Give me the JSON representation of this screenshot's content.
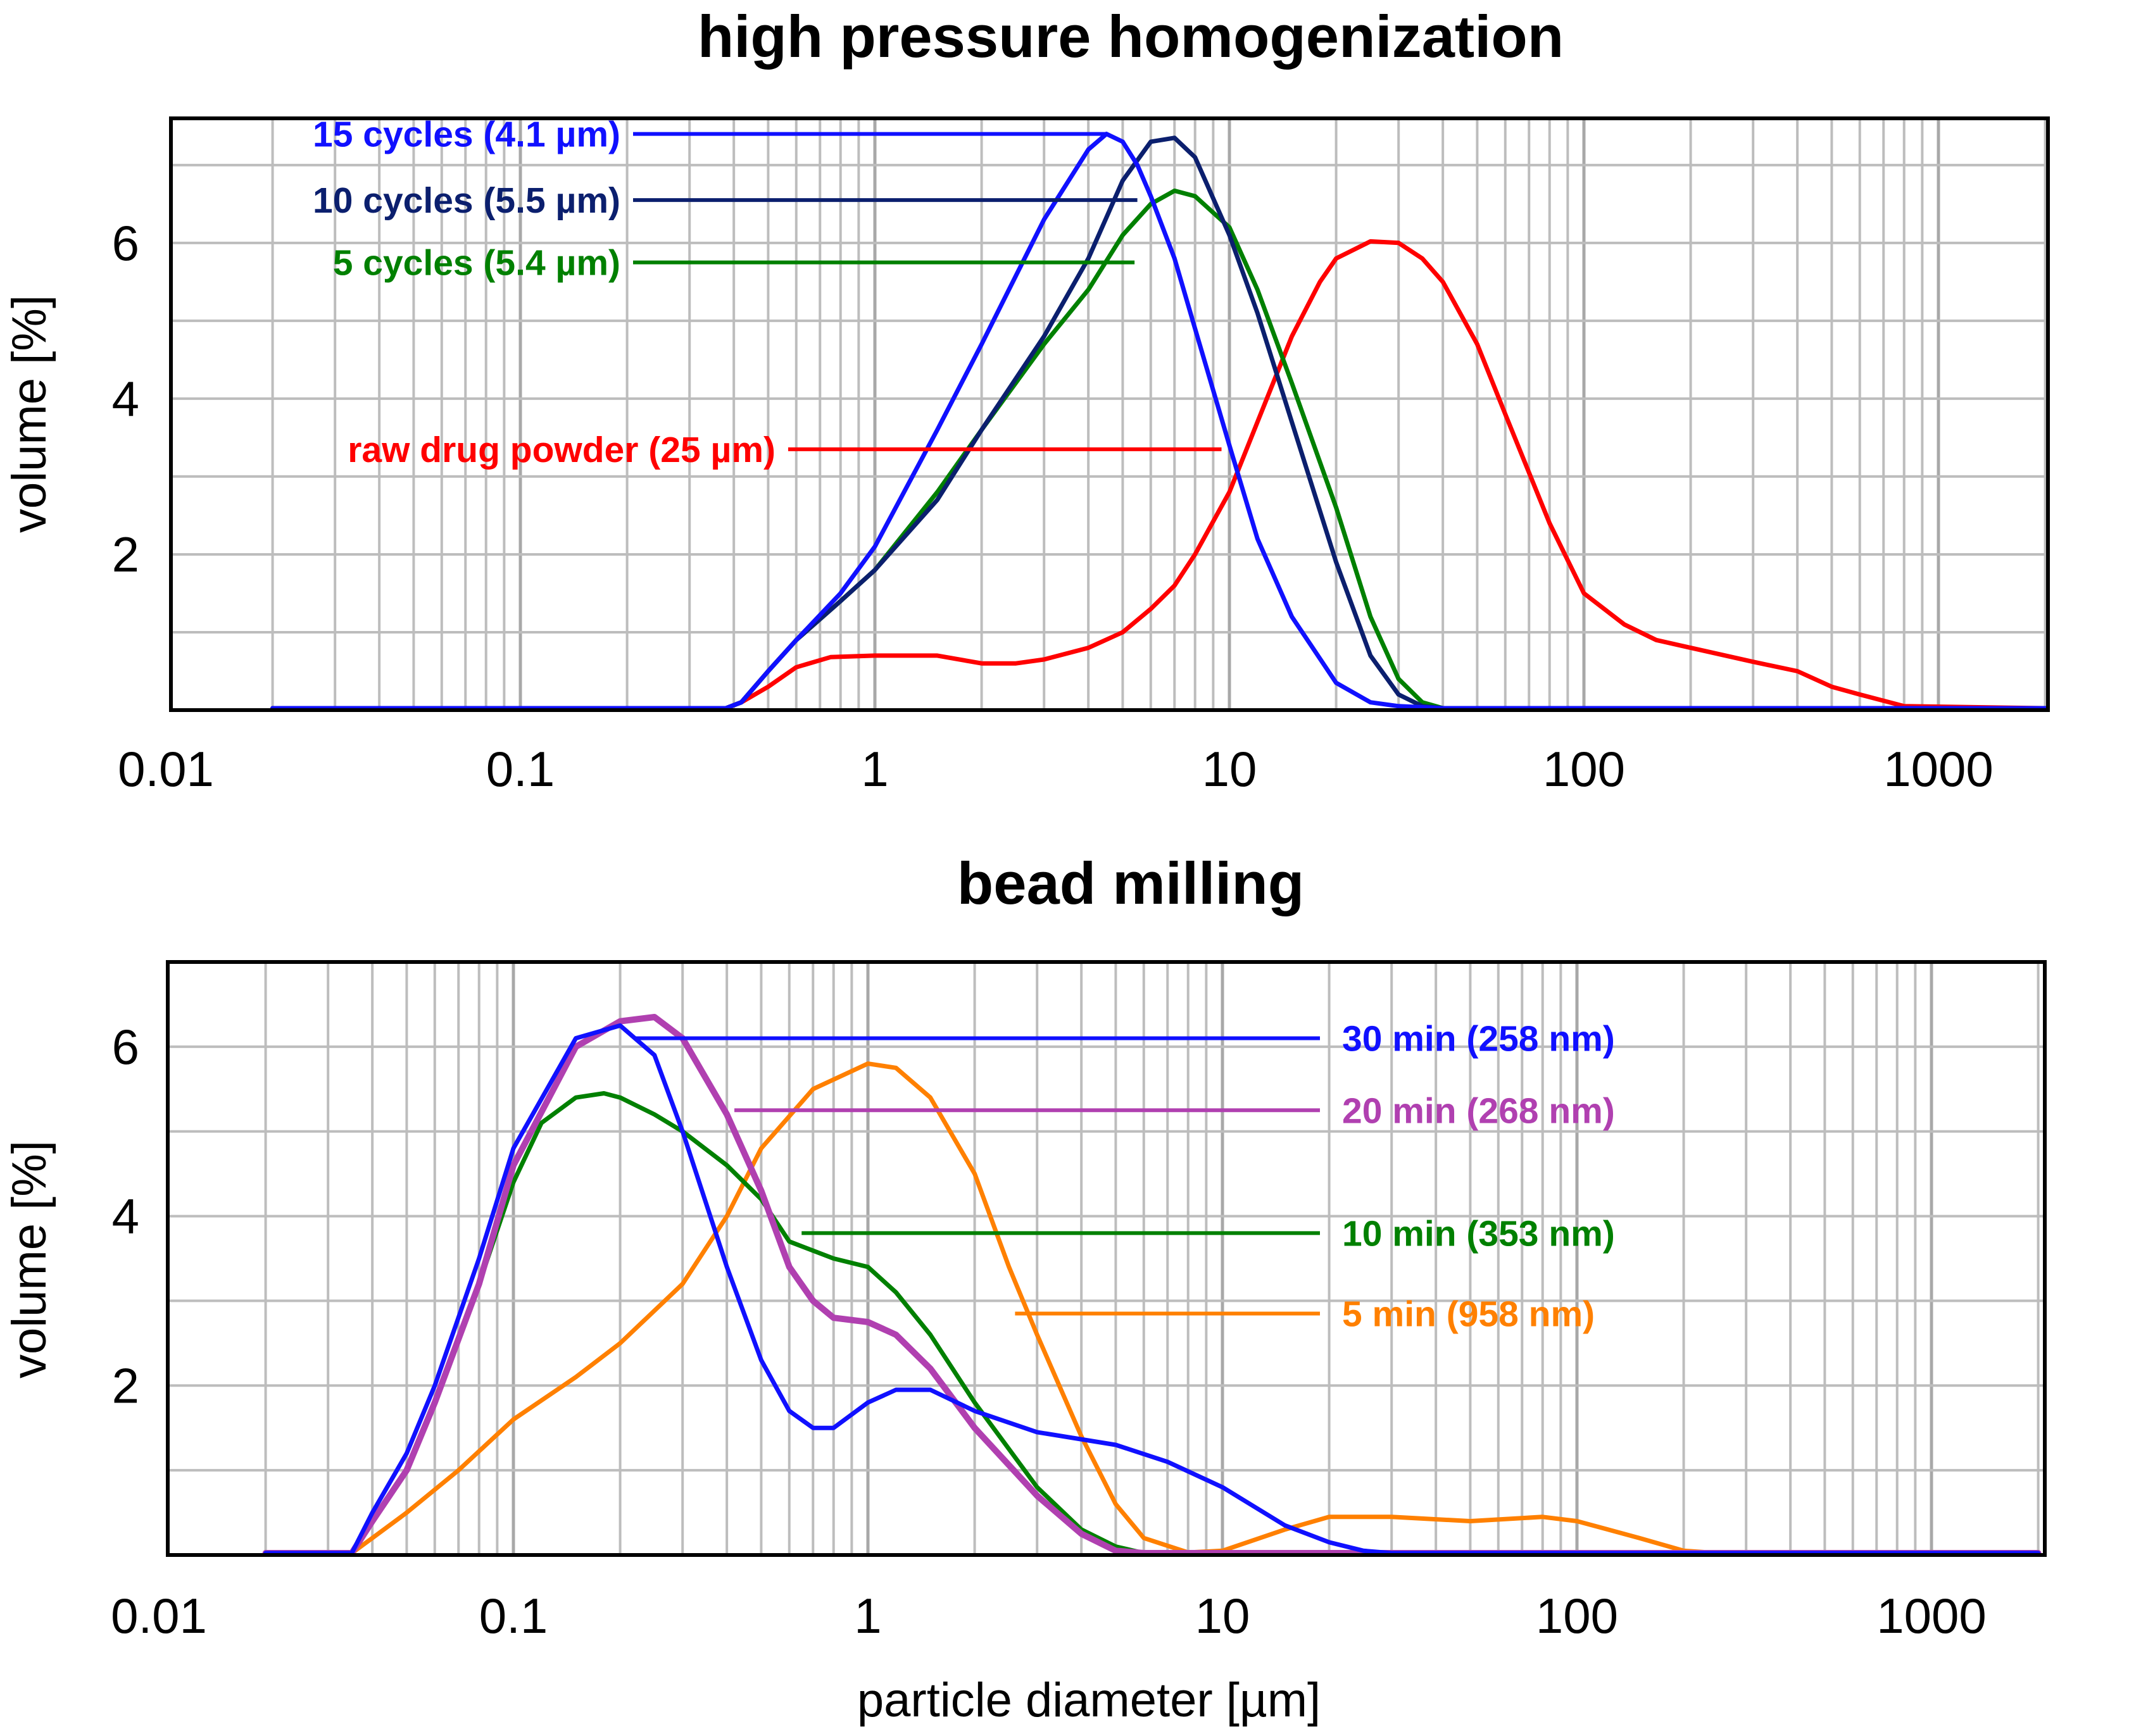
{
  "chart_data": [
    {
      "type": "line",
      "title": "high pressure homogenization",
      "xlabel": "",
      "ylabel": "volume [%]",
      "xscale": "log",
      "xlim": [
        0.01,
        2000
      ],
      "ylim": [
        0,
        7.6
      ],
      "xticks": [
        "0.01",
        "0.1",
        "1",
        "10",
        "100",
        "1000"
      ],
      "yticks": [
        "2",
        "4",
        "6"
      ],
      "grid": true,
      "series": [
        {
          "name": "raw drug powder (25 µm)",
          "color": "#ff0000",
          "x": [
            0.02,
            0.38,
            0.42,
            0.5,
            0.6,
            0.75,
            1.0,
            1.5,
            2.0,
            2.5,
            3.0,
            4.0,
            5.0,
            6.0,
            7.0,
            8.0,
            10.0,
            12.0,
            15.0,
            18.0,
            20.0,
            25.0,
            30.0,
            35.0,
            40.0,
            50.0,
            60.0,
            80.0,
            100.0,
            130.0,
            160.0,
            200.0,
            300.0,
            400.0,
            500.0,
            600.0,
            800.0,
            2000.0
          ],
          "y": [
            0,
            0,
            0.1,
            0.3,
            0.55,
            0.68,
            0.7,
            0.7,
            0.6,
            0.6,
            0.65,
            0.8,
            1.0,
            1.3,
            1.6,
            2.0,
            2.8,
            3.7,
            4.8,
            5.5,
            5.8,
            6.02,
            6.0,
            5.8,
            5.5,
            4.7,
            3.8,
            2.4,
            1.5,
            1.1,
            0.9,
            0.8,
            0.62,
            0.5,
            0.3,
            0.2,
            0.05,
            0
          ]
        },
        {
          "name": "5 cycles (5.4 µm)",
          "color": "#008000",
          "x": [
            0.02,
            0.38,
            0.42,
            0.5,
            0.6,
            0.8,
            1.0,
            1.5,
            2.0,
            3.0,
            4.0,
            5.0,
            6.0,
            7.0,
            8.0,
            10.0,
            12.0,
            15.0,
            20.0,
            25.0,
            30.0,
            35.0,
            40.0,
            2000.0
          ],
          "y": [
            0,
            0,
            0.1,
            0.5,
            0.9,
            1.4,
            1.8,
            2.8,
            3.6,
            4.7,
            5.4,
            6.1,
            6.5,
            6.67,
            6.6,
            6.2,
            5.4,
            4.2,
            2.6,
            1.2,
            0.4,
            0.1,
            0,
            0
          ]
        },
        {
          "name": "10 cycles (5.5 µm)",
          "color": "#0b1f6e",
          "x": [
            0.02,
            0.38,
            0.42,
            0.5,
            0.6,
            0.8,
            1.0,
            1.5,
            2.0,
            3.0,
            4.0,
            5.0,
            6.0,
            7.0,
            8.0,
            10.0,
            12.0,
            15.0,
            20.0,
            25.0,
            30.0,
            35.0,
            40.0,
            2000.0
          ],
          "y": [
            0,
            0,
            0.1,
            0.5,
            0.9,
            1.4,
            1.8,
            2.7,
            3.6,
            4.8,
            5.8,
            6.8,
            7.3,
            7.35,
            7.1,
            6.1,
            5.1,
            3.7,
            1.9,
            0.7,
            0.2,
            0.05,
            0,
            0
          ]
        },
        {
          "name": "15 cycles (4.1 µm)",
          "color": "#1010ff",
          "x": [
            0.02,
            0.38,
            0.42,
            0.5,
            0.6,
            0.8,
            1.0,
            1.5,
            2.0,
            3.0,
            4.0,
            4.5,
            5.0,
            5.5,
            6.0,
            7.0,
            8.0,
            10.0,
            12.0,
            15.0,
            20.0,
            25.0,
            30.0,
            40.0,
            45.0,
            2000.0
          ],
          "y": [
            0,
            0,
            0.1,
            0.5,
            0.9,
            1.5,
            2.1,
            3.6,
            4.7,
            6.3,
            7.2,
            7.4,
            7.3,
            7.0,
            6.6,
            5.8,
            4.9,
            3.4,
            2.2,
            1.2,
            0.35,
            0.1,
            0.05,
            0,
            0,
            0
          ]
        }
      ],
      "annotations": [
        {
          "text": "15 cycles (4.1 µm)",
          "series": "15 cycles (4.1 µm)",
          "y": 7.4,
          "x_end": 4.5
        },
        {
          "text": "10 cycles (5.5 µm)",
          "series": "10 cycles (5.5 µm)",
          "y": 6.55,
          "x_end": 5.5
        },
        {
          "text": "5 cycles (5.4 µm)",
          "series": "5 cycles (5.4 µm)",
          "y": 5.75,
          "x_end": 5.4
        },
        {
          "text": "raw drug powder (25 µm)",
          "series": "raw drug powder (25 µm)",
          "y": 3.35,
          "x_end": 9.5
        }
      ]
    },
    {
      "type": "line",
      "title": "bead milling",
      "xlabel": "particle diameter [µm]",
      "ylabel": "volume [%]",
      "xscale": "log",
      "xlim": [
        0.01,
        2000
      ],
      "ylim": [
        0,
        7.0
      ],
      "xticks": [
        "0.01",
        "0.1",
        "1",
        "10",
        "100",
        "1000"
      ],
      "yticks": [
        "2",
        "4",
        "6"
      ],
      "grid": true,
      "series": [
        {
          "name": "5 min (958 nm)",
          "color": "#ff8000",
          "x": [
            0.02,
            0.035,
            0.04,
            0.05,
            0.07,
            0.1,
            0.15,
            0.2,
            0.3,
            0.4,
            0.5,
            0.7,
            1.0,
            1.2,
            1.5,
            2.0,
            2.5,
            3.0,
            4.0,
            5.0,
            6.0,
            8.0,
            10.0,
            15.0,
            20.0,
            30.0,
            50.0,
            80.0,
            100.0,
            150.0,
            200.0,
            250.0,
            2000.0
          ],
          "y": [
            0,
            0,
            0.2,
            0.5,
            1.0,
            1.6,
            2.1,
            2.5,
            3.2,
            4.0,
            4.8,
            5.5,
            5.8,
            5.75,
            5.4,
            4.5,
            3.4,
            2.6,
            1.4,
            0.6,
            0.2,
            0.03,
            0.05,
            0.3,
            0.45,
            0.45,
            0.4,
            0.45,
            0.4,
            0.2,
            0.05,
            0,
            0
          ]
        },
        {
          "name": "10 min (353 nm)",
          "color": "#008000",
          "x": [
            0.02,
            0.035,
            0.04,
            0.05,
            0.06,
            0.08,
            0.1,
            0.12,
            0.15,
            0.18,
            0.2,
            0.25,
            0.3,
            0.4,
            0.5,
            0.6,
            0.8,
            1.0,
            1.2,
            1.5,
            2.0,
            3.0,
            4.0,
            5.0,
            6.0,
            2000.0
          ],
          "y": [
            0,
            0,
            0.4,
            1.0,
            1.8,
            3.2,
            4.4,
            5.1,
            5.4,
            5.45,
            5.4,
            5.2,
            5.0,
            4.6,
            4.2,
            3.7,
            3.5,
            3.4,
            3.1,
            2.6,
            1.8,
            0.8,
            0.3,
            0.1,
            0.02,
            0
          ]
        },
        {
          "name": "20 min (268 nm)",
          "color": "#b040b0",
          "x": [
            0.02,
            0.035,
            0.04,
            0.05,
            0.06,
            0.08,
            0.1,
            0.15,
            0.2,
            0.25,
            0.3,
            0.4,
            0.5,
            0.6,
            0.7,
            0.8,
            1.0,
            1.2,
            1.5,
            2.0,
            3.0,
            4.0,
            5.0,
            6.0,
            2000.0
          ],
          "y": [
            0,
            0,
            0.4,
            1.0,
            1.8,
            3.2,
            4.6,
            6.0,
            6.3,
            6.35,
            6.1,
            5.2,
            4.3,
            3.4,
            3.0,
            2.8,
            2.75,
            2.6,
            2.2,
            1.5,
            0.7,
            0.25,
            0.05,
            0,
            0
          ]
        },
        {
          "name": "30 min (258 nm)",
          "color": "#1010ff",
          "x": [
            0.02,
            0.035,
            0.04,
            0.05,
            0.06,
            0.08,
            0.1,
            0.15,
            0.2,
            0.25,
            0.3,
            0.4,
            0.5,
            0.6,
            0.7,
            0.8,
            1.0,
            1.2,
            1.5,
            2.0,
            3.0,
            5.0,
            7.0,
            10.0,
            15.0,
            20.0,
            25.0,
            30.0,
            2000.0
          ],
          "y": [
            0,
            0,
            0.5,
            1.2,
            2.0,
            3.5,
            4.8,
            6.1,
            6.25,
            5.9,
            5.0,
            3.4,
            2.3,
            1.7,
            1.5,
            1.5,
            1.8,
            1.95,
            1.95,
            1.7,
            1.45,
            1.3,
            1.1,
            0.8,
            0.35,
            0.15,
            0.05,
            0,
            0
          ]
        }
      ],
      "annotations": [
        {
          "text": "30 min (258 nm)",
          "series": "30 min (258 nm)",
          "y": 6.1,
          "x_start": 0.22
        },
        {
          "text": "20 min (268 nm)",
          "series": "20 min (268 nm)",
          "y": 5.25,
          "x_start": 0.42
        },
        {
          "text": "10 min (353 nm)",
          "series": "10 min (353 nm)",
          "y": 3.8,
          "x_start": 0.65
        },
        {
          "text": "5 min (958 nm)",
          "series": "5 min (958 nm)",
          "y": 2.85,
          "x_start": 2.6
        }
      ]
    }
  ]
}
